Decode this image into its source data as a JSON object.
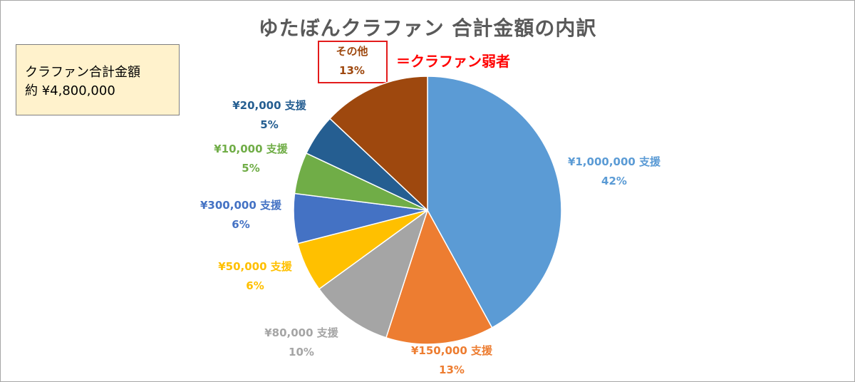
{
  "chart_data": {
    "type": "pie",
    "title": "ゆたぼんクラファン 合計金額の内訳",
    "slices": [
      {
        "label": "¥1,000,000 支援",
        "value": 42,
        "percent": "42%",
        "color": "#5b9bd5"
      },
      {
        "label": "¥150,000 支援",
        "value": 13,
        "percent": "13%",
        "color": "#ed7d31"
      },
      {
        "label": "¥80,000 支援",
        "value": 10,
        "percent": "10%",
        "color": "#a5a5a5"
      },
      {
        "label": "¥50,000 支援",
        "value": 6,
        "percent": "6%",
        "color": "#ffc000"
      },
      {
        "label": "¥300,000 支援",
        "value": 6,
        "percent": "6%",
        "color": "#4472c4"
      },
      {
        "label": "¥10,000 支援",
        "value": 5,
        "percent": "5%",
        "color": "#70ad47"
      },
      {
        "label": "¥20,000 支援",
        "value": 5,
        "percent": "5%",
        "color": "#255e91"
      },
      {
        "label": "その他",
        "value": 13,
        "percent": "13%",
        "color": "#9e480e"
      }
    ],
    "legend": "none"
  },
  "info_box": {
    "line1": "クラファン合計金額",
    "line2": "約 ¥4,800,000"
  },
  "annotation": "＝クラファン弱者"
}
